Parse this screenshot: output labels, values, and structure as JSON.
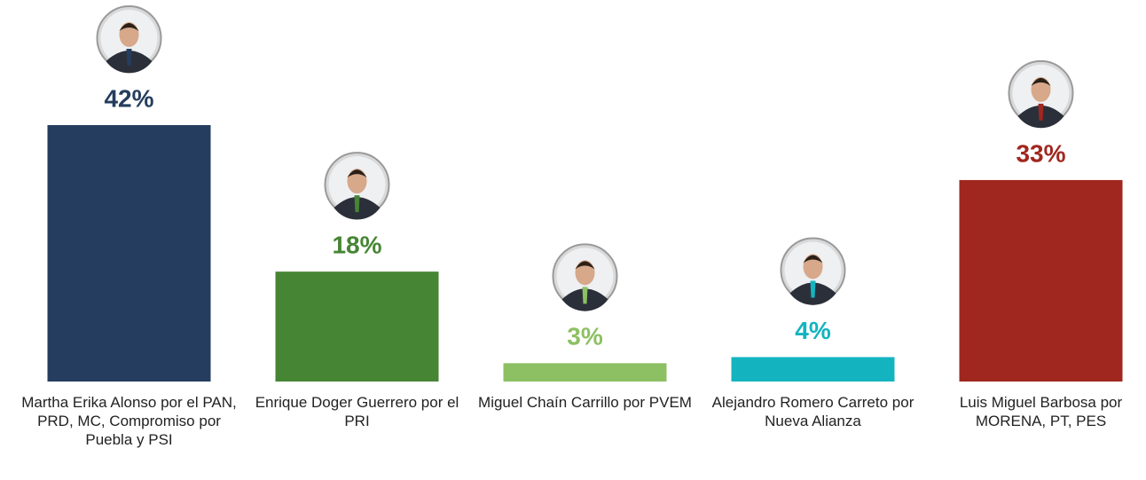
{
  "chart_data": {
    "type": "bar",
    "categories": [
      "Martha Erika Alonso por el PAN, PRD, MC, Compromiso por Puebla y PSI",
      "Enrique Doger Guerrero por el PRI",
      "Miguel Chaín Carrillo por PVEM",
      "Alejandro Romero Carreto por Nueva Alianza",
      "Luis Miguel Barbosa por MORENA, PT, PES"
    ],
    "values": [
      42,
      18,
      3,
      4,
      33
    ],
    "value_labels": [
      "42%",
      "18%",
      "3%",
      "4%",
      "33%"
    ],
    "colors": [
      "#253d5e",
      "#468534",
      "#8cc063",
      "#13b4bf",
      "#a0271f"
    ]
  }
}
